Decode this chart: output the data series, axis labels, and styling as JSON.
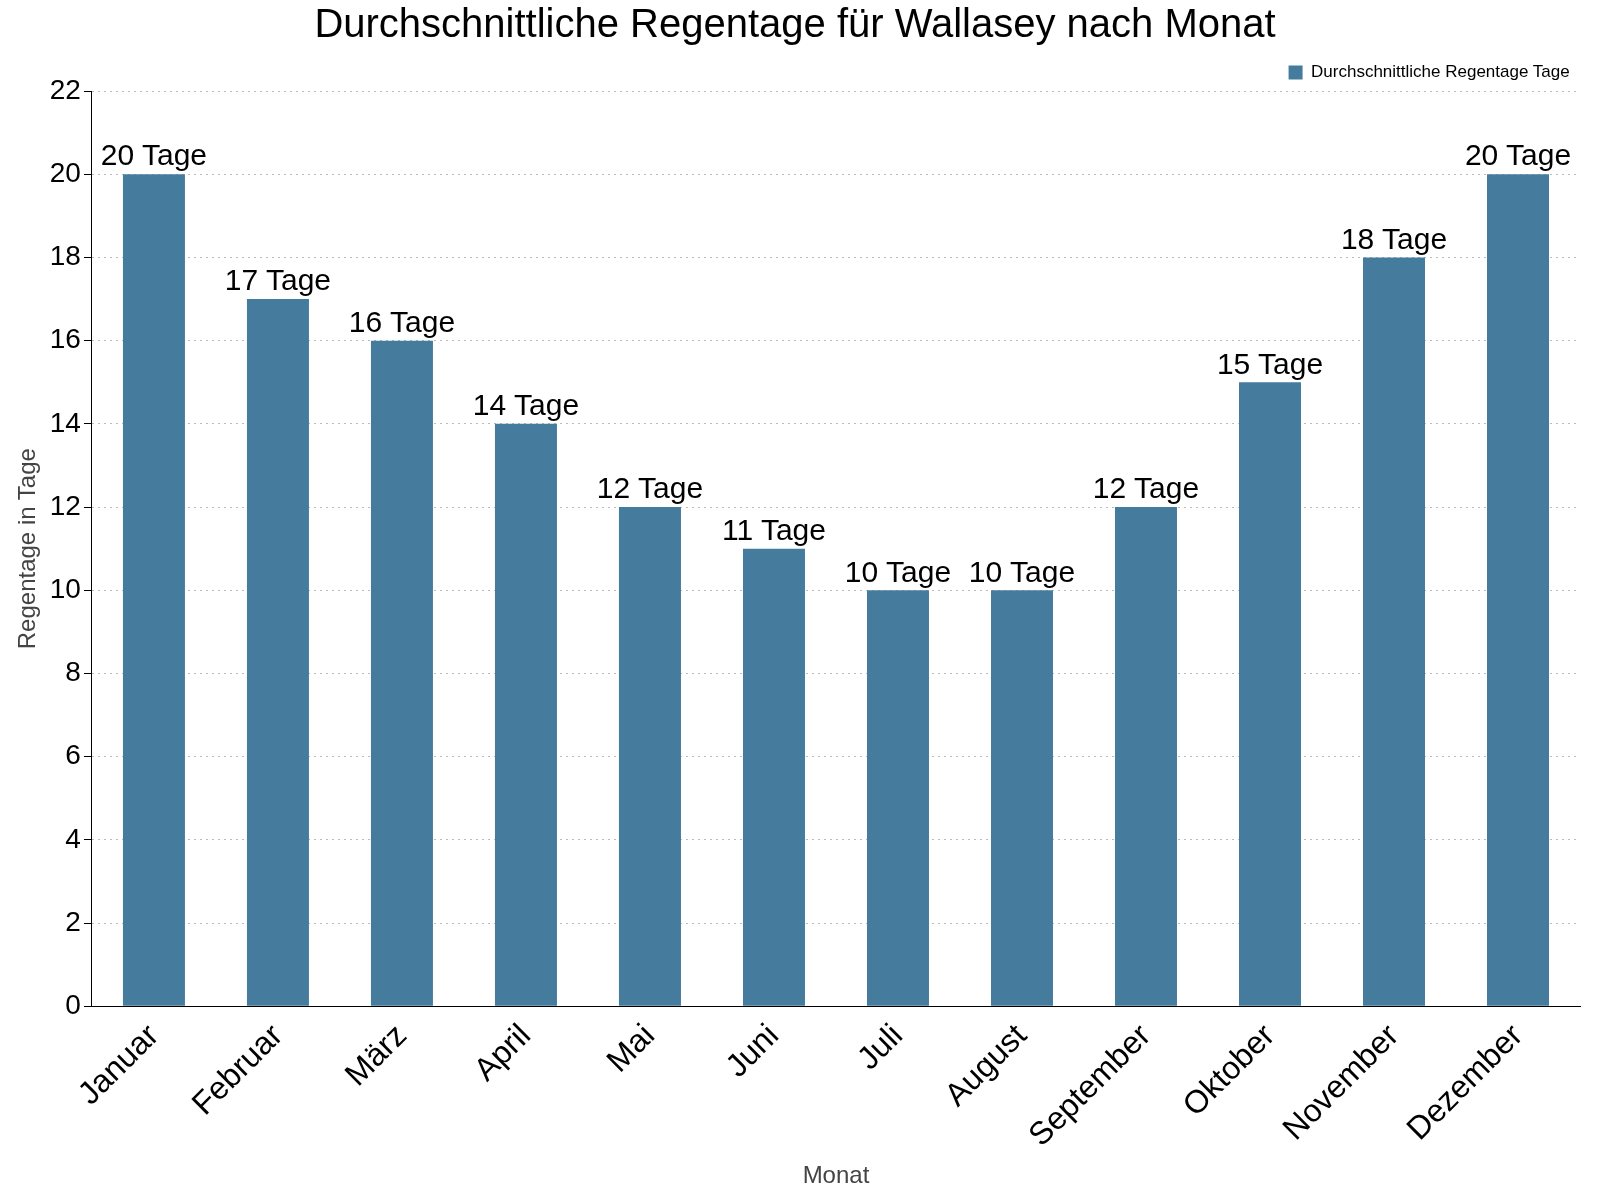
{
  "chart_data": {
    "type": "bar",
    "title": "Durchschnittliche Regentage für Wallasey nach Monat",
    "xlabel": "Monat",
    "ylabel": "Regentage in Tage",
    "categories": [
      "Januar",
      "Februar",
      "März",
      "April",
      "Mai",
      "Juni",
      "Juli",
      "August",
      "September",
      "Oktober",
      "November",
      "Dezember"
    ],
    "series": [
      {
        "name": "Durchschnittliche Regentage Tage",
        "color": "#457b9d",
        "values": [
          20,
          17,
          16,
          14,
          12,
          11,
          10,
          10,
          12,
          15,
          18,
          20
        ],
        "value_labels": [
          "20 Tage",
          "17 Tage",
          "16 Tage",
          "14 Tage",
          "12 Tage",
          "11 Tage",
          "10 Tage",
          "10 Tage",
          "12 Tage",
          "15 Tage",
          "18 Tage",
          "20 Tage"
        ]
      }
    ],
    "ylim": [
      0,
      22
    ],
    "yticks": [
      0,
      2,
      4,
      6,
      8,
      10,
      12,
      14,
      16,
      18,
      20,
      22
    ],
    "grid": "y",
    "legend": "top right"
  }
}
